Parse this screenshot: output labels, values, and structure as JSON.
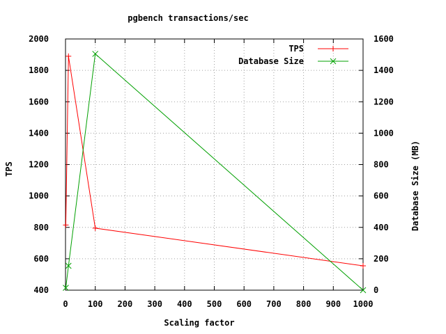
{
  "chart_data": {
    "type": "line",
    "title": "pgbench transactions/sec",
    "xlabel": "Scaling factor",
    "ylabel": "TPS",
    "y2label": "Database Size (MB)",
    "xlim": [
      0,
      1000
    ],
    "ylim": [
      400,
      2000
    ],
    "y2lim": [
      0,
      1600
    ],
    "xticks": [
      "0",
      "100",
      "200",
      "300",
      "400",
      "500",
      "600",
      "700",
      "800",
      "900",
      "1000"
    ],
    "yticks": [
      "400",
      "600",
      "800",
      "1000",
      "1200",
      "1400",
      "1600",
      "1800",
      "2000"
    ],
    "y2ticks": [
      "0",
      "200",
      "400",
      "600",
      "800",
      "1000",
      "1200",
      "1400",
      "1600"
    ],
    "grid": true,
    "legend_position": "top-right",
    "series": [
      {
        "name": "TPS",
        "axis": "y",
        "color": "#ff0000",
        "marker": "plus",
        "x": [
          1,
          10,
          100,
          1000
        ],
        "y": [
          815,
          1890,
          795,
          555
        ]
      },
      {
        "name": "Database Size",
        "axis": "y2",
        "color": "#00a000",
        "marker": "cross",
        "x": [
          1,
          10,
          100,
          1000
        ],
        "y": [
          15,
          155,
          1505,
          0
        ]
      }
    ]
  }
}
